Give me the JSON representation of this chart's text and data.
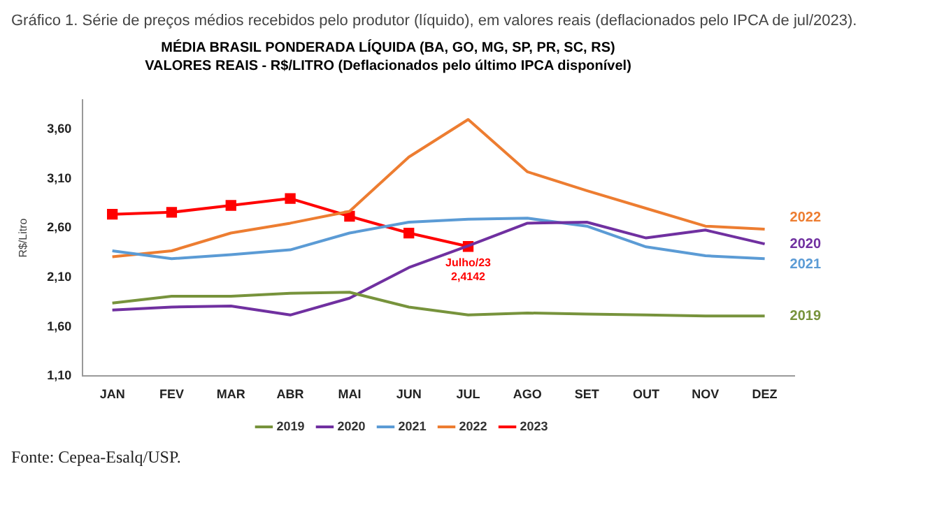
{
  "chart_data": {
    "type": "line",
    "title": "MÉDIA BRASIL PONDERADA LÍQUIDA (BA, GO, MG, SP, PR, SC, RS)",
    "subtitle": "VALORES REAIS - R$/LITRO (Deflacionados pelo último IPCA disponível)",
    "ylabel": "R$/Litro",
    "categories": [
      "JAN",
      "FEV",
      "MAR",
      "ABR",
      "MAI",
      "JUN",
      "JUL",
      "AGO",
      "SET",
      "OUT",
      "NOV",
      "DEZ"
    ],
    "series": [
      {
        "name": "2019",
        "color": "#77933c",
        "values": [
          1.84,
          1.91,
          1.91,
          1.94,
          1.95,
          1.8,
          1.72,
          1.74,
          1.73,
          1.72,
          1.71,
          1.71
        ]
      },
      {
        "name": "2020",
        "color": "#7030a0",
        "values": [
          1.77,
          1.8,
          1.81,
          1.72,
          1.89,
          2.2,
          2.42,
          2.65,
          2.66,
          2.5,
          2.58,
          2.44
        ]
      },
      {
        "name": "2021",
        "color": "#5b9bd5",
        "values": [
          2.37,
          2.29,
          2.33,
          2.38,
          2.55,
          2.66,
          2.69,
          2.7,
          2.62,
          2.41,
          2.32,
          2.29
        ]
      },
      {
        "name": "2022",
        "color": "#ed7d31",
        "values": [
          2.31,
          2.37,
          2.55,
          2.65,
          2.77,
          3.32,
          3.7,
          3.17,
          2.98,
          2.8,
          2.62,
          2.59
        ]
      },
      {
        "name": "2023",
        "color": "#ff0000",
        "marker": "square",
        "values": [
          2.74,
          2.76,
          2.83,
          2.9,
          2.72,
          2.55,
          2.4142,
          null,
          null,
          null,
          null,
          null
        ]
      }
    ],
    "ylim": [
      1.1,
      3.9
    ],
    "yticks": [
      {
        "value": 1.1,
        "label": "1,10"
      },
      {
        "value": 1.6,
        "label": "1,60"
      },
      {
        "value": 2.1,
        "label": "2,10"
      },
      {
        "value": 2.6,
        "label": "2,60"
      },
      {
        "value": 3.1,
        "label": "3,10"
      },
      {
        "value": 3.6,
        "label": "3,60"
      }
    ],
    "grid": false,
    "legend": "bottom",
    "marker": "none",
    "line_style": "solid",
    "annotations": [
      "Gráfico 1. Série de preços médios recebidos pelo produtor (líquido), em valores reais (deflacionados pelo IPCA de jul/2023).",
      "Fonte: Cepea-Esalq/USP.",
      {
        "text": "Julho/23\n2,4142",
        "x": "JUL",
        "y": 2.4142
      }
    ]
  }
}
